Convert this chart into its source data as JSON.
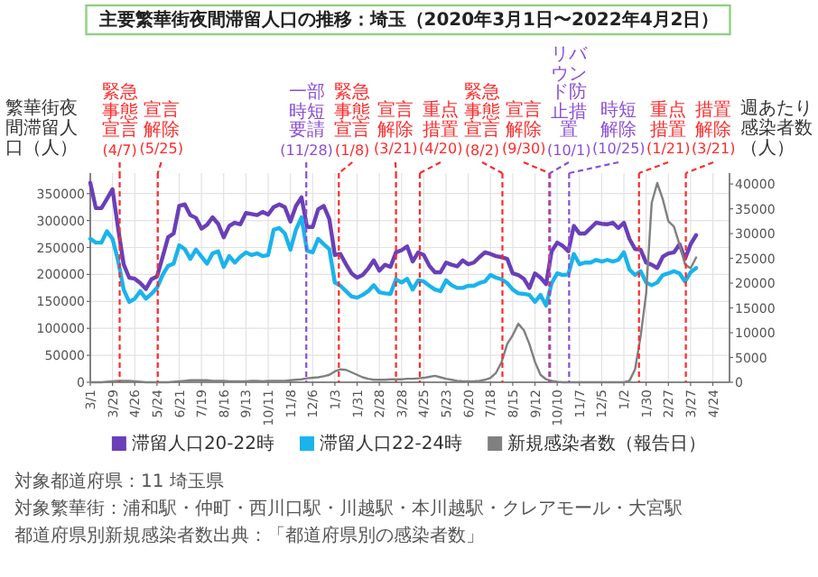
{
  "chart_data": {
    "type": "line",
    "title": "主要繁華街夜間滞留人口の推移：埼玉（2020年3月1日〜2022年4月2日）",
    "ylabel": "繁華街夜間滞留人口（人）",
    "y2label": "週あたり感染者数（人）",
    "x": [
      "2020-03-01",
      "2020-03-08",
      "2020-03-15",
      "2020-03-22",
      "2020-03-29",
      "2020-04-05",
      "2020-04-12",
      "2020-04-19",
      "2020-04-26",
      "2020-05-03",
      "2020-05-10",
      "2020-05-17",
      "2020-05-24",
      "2020-05-31",
      "2020-06-07",
      "2020-06-14",
      "2020-06-21",
      "2020-06-28",
      "2020-07-05",
      "2020-07-12",
      "2020-07-19",
      "2020-07-26",
      "2020-08-02",
      "2020-08-09",
      "2020-08-16",
      "2020-08-23",
      "2020-08-30",
      "2020-09-06",
      "2020-09-13",
      "2020-09-20",
      "2020-09-27",
      "2020-10-04",
      "2020-10-11",
      "2020-10-18",
      "2020-10-25",
      "2020-11-01",
      "2020-11-08",
      "2020-11-15",
      "2020-11-22",
      "2020-11-29",
      "2020-12-06",
      "2020-12-13",
      "2020-12-20",
      "2020-12-27",
      "2021-01-03",
      "2021-01-10",
      "2021-01-17",
      "2021-01-24",
      "2021-01-31",
      "2021-02-07",
      "2021-02-14",
      "2021-02-21",
      "2021-02-28",
      "2021-03-07",
      "2021-03-14",
      "2021-03-21",
      "2021-03-28",
      "2021-04-04",
      "2021-04-11",
      "2021-04-18",
      "2021-04-25",
      "2021-05-02",
      "2021-05-09",
      "2021-05-16",
      "2021-05-23",
      "2021-05-30",
      "2021-06-06",
      "2021-06-13",
      "2021-06-20",
      "2021-06-27",
      "2021-07-04",
      "2021-07-11",
      "2021-07-18",
      "2021-07-25",
      "2021-08-01",
      "2021-08-08",
      "2021-08-15",
      "2021-08-22",
      "2021-08-29",
      "2021-09-05",
      "2021-09-12",
      "2021-09-19",
      "2021-09-26",
      "2021-10-03",
      "2021-10-10",
      "2021-10-17",
      "2021-10-24",
      "2021-10-31",
      "2021-11-07",
      "2021-11-14",
      "2021-11-21",
      "2021-11-28",
      "2021-12-05",
      "2021-12-12",
      "2021-12-19",
      "2021-12-26",
      "2022-01-02",
      "2022-01-09",
      "2022-01-16",
      "2022-01-23",
      "2022-01-30",
      "2022-02-06",
      "2022-02-13",
      "2022-02-20",
      "2022-02-27",
      "2022-03-06",
      "2022-03-13",
      "2022-03-20",
      "2022-03-27",
      "2022-04-03"
    ],
    "xlim": [
      "2020-03-01",
      "2022-05-15"
    ],
    "xticks": [
      {
        "value": "2020-03-01",
        "label": "3/1"
      },
      {
        "value": "2020-03-29",
        "label": "3/29"
      },
      {
        "value": "2020-04-26",
        "label": "4/26"
      },
      {
        "value": "2020-05-24",
        "label": "5/24"
      },
      {
        "value": "2020-06-21",
        "label": "6/21"
      },
      {
        "value": "2020-07-19",
        "label": "7/19"
      },
      {
        "value": "2020-08-16",
        "label": "8/16"
      },
      {
        "value": "2020-09-13",
        "label": "9/13"
      },
      {
        "value": "2020-10-11",
        "label": "10/11"
      },
      {
        "value": "2020-11-08",
        "label": "11/8"
      },
      {
        "value": "2020-12-06",
        "label": "12/6"
      },
      {
        "value": "2021-01-03",
        "label": "1/3"
      },
      {
        "value": "2021-01-31",
        "label": "1/31"
      },
      {
        "value": "2021-02-28",
        "label": "2/28"
      },
      {
        "value": "2021-03-28",
        "label": "3/28"
      },
      {
        "value": "2021-04-25",
        "label": "4/25"
      },
      {
        "value": "2021-05-23",
        "label": "5/23"
      },
      {
        "value": "2021-06-20",
        "label": "6/20"
      },
      {
        "value": "2021-07-18",
        "label": "7/18"
      },
      {
        "value": "2021-08-15",
        "label": "8/15"
      },
      {
        "value": "2021-09-12",
        "label": "9/12"
      },
      {
        "value": "2021-10-10",
        "label": "10/10"
      },
      {
        "value": "2021-11-07",
        "label": "11/7"
      },
      {
        "value": "2021-12-05",
        "label": "12/5"
      },
      {
        "value": "2022-01-02",
        "label": "1/2"
      },
      {
        "value": "2022-01-30",
        "label": "1/30"
      },
      {
        "value": "2022-02-27",
        "label": "2/27"
      },
      {
        "value": "2022-03-27",
        "label": "3/27"
      },
      {
        "value": "2022-04-24",
        "label": "4/24"
      }
    ],
    "ylim": [
      0,
      388000
    ],
    "yticks": [
      0,
      50000,
      100000,
      150000,
      200000,
      250000,
      300000,
      350000
    ],
    "y2lim": [
      0,
      42200
    ],
    "y2ticks": [
      0,
      5000,
      10000,
      15000,
      20000,
      25000,
      30000,
      35000,
      40000
    ],
    "grid": true,
    "legend": "bottom",
    "series": [
      {
        "name": "滞留人口20-22時",
        "color": "#6a3fb8",
        "values": [
          370000,
          323000,
          323000,
          340000,
          358000,
          286000,
          219000,
          194000,
          192000,
          184000,
          173000,
          191000,
          196000,
          232000,
          269000,
          276000,
          327000,
          330000,
          310000,
          305000,
          285000,
          292000,
          306000,
          294000,
          269000,
          290000,
          296000,
          293000,
          314000,
          312000,
          310000,
          316000,
          311000,
          325000,
          330000,
          325000,
          298000,
          327000,
          343000,
          288000,
          288000,
          321000,
          327000,
          303000,
          236000,
          238000,
          219000,
          202000,
          194000,
          199000,
          211000,
          226000,
          207000,
          218000,
          214000,
          241000,
          245000,
          252000,
          224000,
          241000,
          236000,
          216000,
          204000,
          204000,
          222000,
          218000,
          215000,
          226000,
          219000,
          222000,
          232000,
          241000,
          238000,
          234000,
          232000,
          229000,
          202000,
          199000,
          192000,
          175000,
          202000,
          194000,
          182000,
          243000,
          259000,
          253000,
          243000,
          290000,
          276000,
          276000,
          286000,
          296000,
          294000,
          293000,
          296000,
          286000,
          296000,
          266000,
          247000,
          246000,
          222000,
          218000,
          212000,
          233000,
          239000,
          241000,
          256000,
          229000,
          256000,
          273000
        ]
      },
      {
        "name": "滞留人口22-24時",
        "color": "#1ab3ec",
        "values": [
          266000,
          259000,
          259000,
          280000,
          266000,
          226000,
          172000,
          149000,
          155000,
          169000,
          155000,
          164000,
          175000,
          199000,
          216000,
          220000,
          254000,
          247000,
          229000,
          246000,
          233000,
          220000,
          239000,
          243000,
          214000,
          234000,
          222000,
          233000,
          241000,
          236000,
          239000,
          234000,
          236000,
          283000,
          286000,
          276000,
          246000,
          283000,
          306000,
          244000,
          241000,
          266000,
          256000,
          247000,
          185000,
          179000,
          169000,
          159000,
          157000,
          162000,
          169000,
          180000,
          167000,
          165000,
          164000,
          191000,
          185000,
          192000,
          172000,
          189000,
          187000,
          179000,
          172000,
          169000,
          189000,
          180000,
          175000,
          175000,
          179000,
          179000,
          184000,
          187000,
          199000,
          194000,
          191000,
          184000,
          172000,
          165000,
          164000,
          162000,
          149000,
          162000,
          142000,
          184000,
          202000,
          199000,
          200000,
          238000,
          219000,
          222000,
          222000,
          227000,
          224000,
          227000,
          224000,
          227000,
          241000,
          209000,
          199000,
          206000,
          185000,
          180000,
          185000,
          199000,
          202000,
          206000,
          202000,
          187000,
          204000,
          212000
        ]
      },
      {
        "name": "新規感染者数（報告日）",
        "color": "#808080",
        "axis": "y2",
        "values": [
          0,
          0,
          0,
          100,
          200,
          300,
          300,
          300,
          200,
          100,
          0,
          0,
          0,
          0,
          0,
          100,
          200,
          300,
          400,
          400,
          400,
          400,
          300,
          300,
          300,
          200,
          200,
          200,
          200,
          300,
          300,
          200,
          300,
          300,
          300,
          300,
          400,
          500,
          600,
          800,
          900,
          1000,
          1200,
          1500,
          2200,
          2600,
          2500,
          2000,
          1500,
          1000,
          700,
          500,
          500,
          500,
          600,
          600,
          600,
          700,
          700,
          800,
          900,
          1100,
          1300,
          1000,
          700,
          500,
          300,
          200,
          200,
          200,
          300,
          500,
          900,
          1900,
          4100,
          7700,
          9500,
          11800,
          10500,
          7700,
          4100,
          1500,
          600,
          300,
          100,
          0,
          0,
          0,
          0,
          0,
          0,
          0,
          0,
          0,
          0,
          0,
          0,
          300,
          2600,
          9200,
          17900,
          36200,
          40200,
          36900,
          32500,
          31400,
          27800,
          23800,
          23000,
          25200
        ]
      }
    ],
    "ref_lines": [
      {
        "axis": "x",
        "value": "2020-04-07",
        "label": "緊急事態宣言(4/7)",
        "color": "#ff2a2a",
        "line_style": "dashed"
      },
      {
        "axis": "x",
        "value": "2020-05-25",
        "label": "宣言解除(5/25)",
        "color": "#ff2a2a",
        "line_style": "dashed"
      },
      {
        "axis": "x",
        "value": "2020-11-28",
        "label": "一部時短要請(11/28)",
        "color": "#8a4fd6",
        "line_style": "dashed"
      },
      {
        "axis": "x",
        "value": "2021-01-08",
        "label": "緊急事態宣言(1/8)",
        "color": "#ff2a2a",
        "line_style": "dashed"
      },
      {
        "axis": "x",
        "value": "2021-03-21",
        "label": "宣言解除(3/21)",
        "color": "#ff2a2a",
        "line_style": "dashed"
      },
      {
        "axis": "x",
        "value": "2021-04-20",
        "label": "重点措置(4/20)",
        "color": "#ff2a2a",
        "line_style": "dashed"
      },
      {
        "axis": "x",
        "value": "2021-08-02",
        "label": "緊急事態宣言(8/2)",
        "color": "#ff2a2a",
        "line_style": "dashed"
      },
      {
        "axis": "x",
        "value": "2021-09-30",
        "label": "宣言解除(9/30)",
        "color": "#ff2a2a",
        "line_style": "dashed"
      },
      {
        "axis": "x",
        "value": "2021-10-01",
        "label": "リバウンド防止措置(10/1)",
        "color": "#8a4fd6",
        "line_style": "dashed"
      },
      {
        "axis": "x",
        "value": "2021-10-25",
        "label": "時短解除(10/25)",
        "color": "#8a4fd6",
        "line_style": "dashed"
      },
      {
        "axis": "x",
        "value": "2022-01-21",
        "label": "重点措置(1/21)",
        "color": "#ff2a2a",
        "line_style": "dashed"
      },
      {
        "axis": "x",
        "value": "2022-03-21",
        "label": "措置解除(3/21)",
        "color": "#ff2a2a",
        "line_style": "dashed"
      }
    ],
    "annotations": [
      "対象都道府県：11 埼玉県",
      "対象繁華街：浦和駅・仲町・西川口駅・川越駅・本川越駅・クレアモール・大宮駅",
      "都道府県別新規感染者数出典：「都道府県別の感染者数」"
    ]
  }
}
